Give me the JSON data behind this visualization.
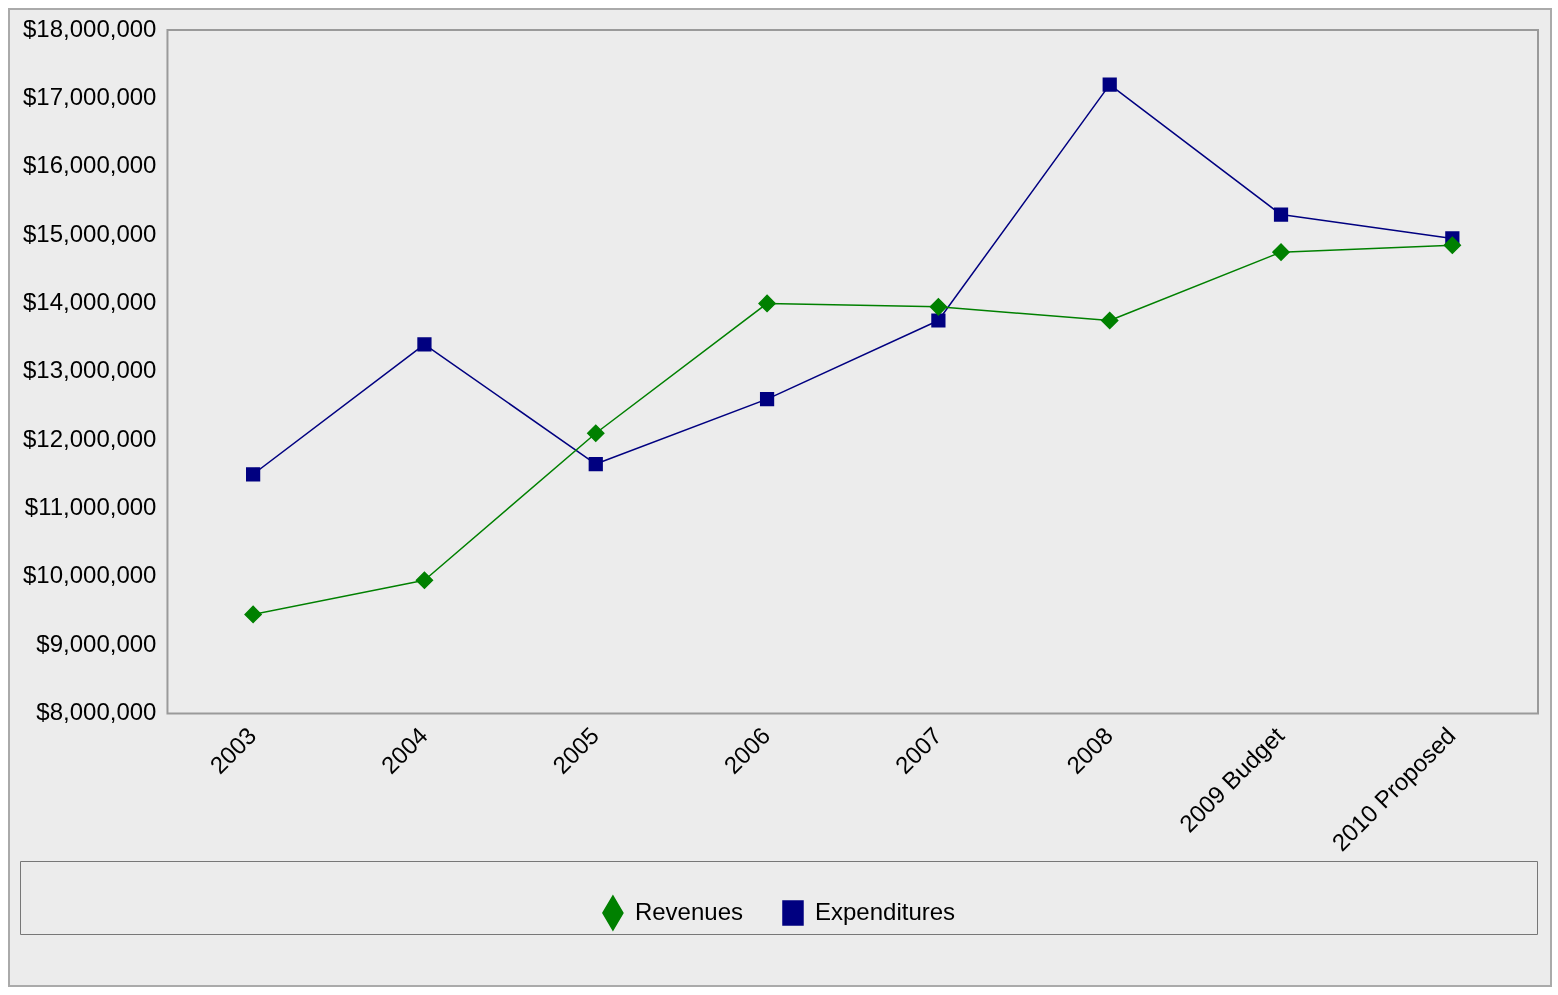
{
  "chart_data": {
    "type": "line",
    "categories": [
      "2003",
      "2004",
      "2005",
      "2006",
      "2007",
      "2008",
      "2009 Budget",
      "2010 Proposed"
    ],
    "series": [
      {
        "name": "Revenues",
        "color": "#008000",
        "marker": "diamond",
        "values": [
          9450000,
          9950000,
          12100000,
          14000000,
          13950000,
          13750000,
          14750000,
          14850000
        ]
      },
      {
        "name": "Expenditures",
        "color": "#000080",
        "marker": "square",
        "values": [
          11500000,
          13400000,
          11650000,
          12600000,
          13750000,
          17200000,
          15300000,
          14950000
        ]
      }
    ],
    "ylim": [
      8000000,
      18000000
    ],
    "yticks": [
      {
        "value": 8000000,
        "label": "$8,000,000"
      },
      {
        "value": 9000000,
        "label": "$9,000,000"
      },
      {
        "value": 10000000,
        "label": "$10,000,000"
      },
      {
        "value": 11000000,
        "label": "$11,000,000"
      },
      {
        "value": 12000000,
        "label": "$12,000,000"
      },
      {
        "value": 13000000,
        "label": "$13,000,000"
      },
      {
        "value": 14000000,
        "label": "$14,000,000"
      },
      {
        "value": 15000000,
        "label": "$15,000,000"
      },
      {
        "value": 16000000,
        "label": "$16,000,000"
      },
      {
        "value": 17000000,
        "label": "$17,000,000"
      },
      {
        "value": 18000000,
        "label": "$18,000,000"
      }
    ],
    "grid": false,
    "legend": "bottom",
    "line_style": "solid"
  }
}
